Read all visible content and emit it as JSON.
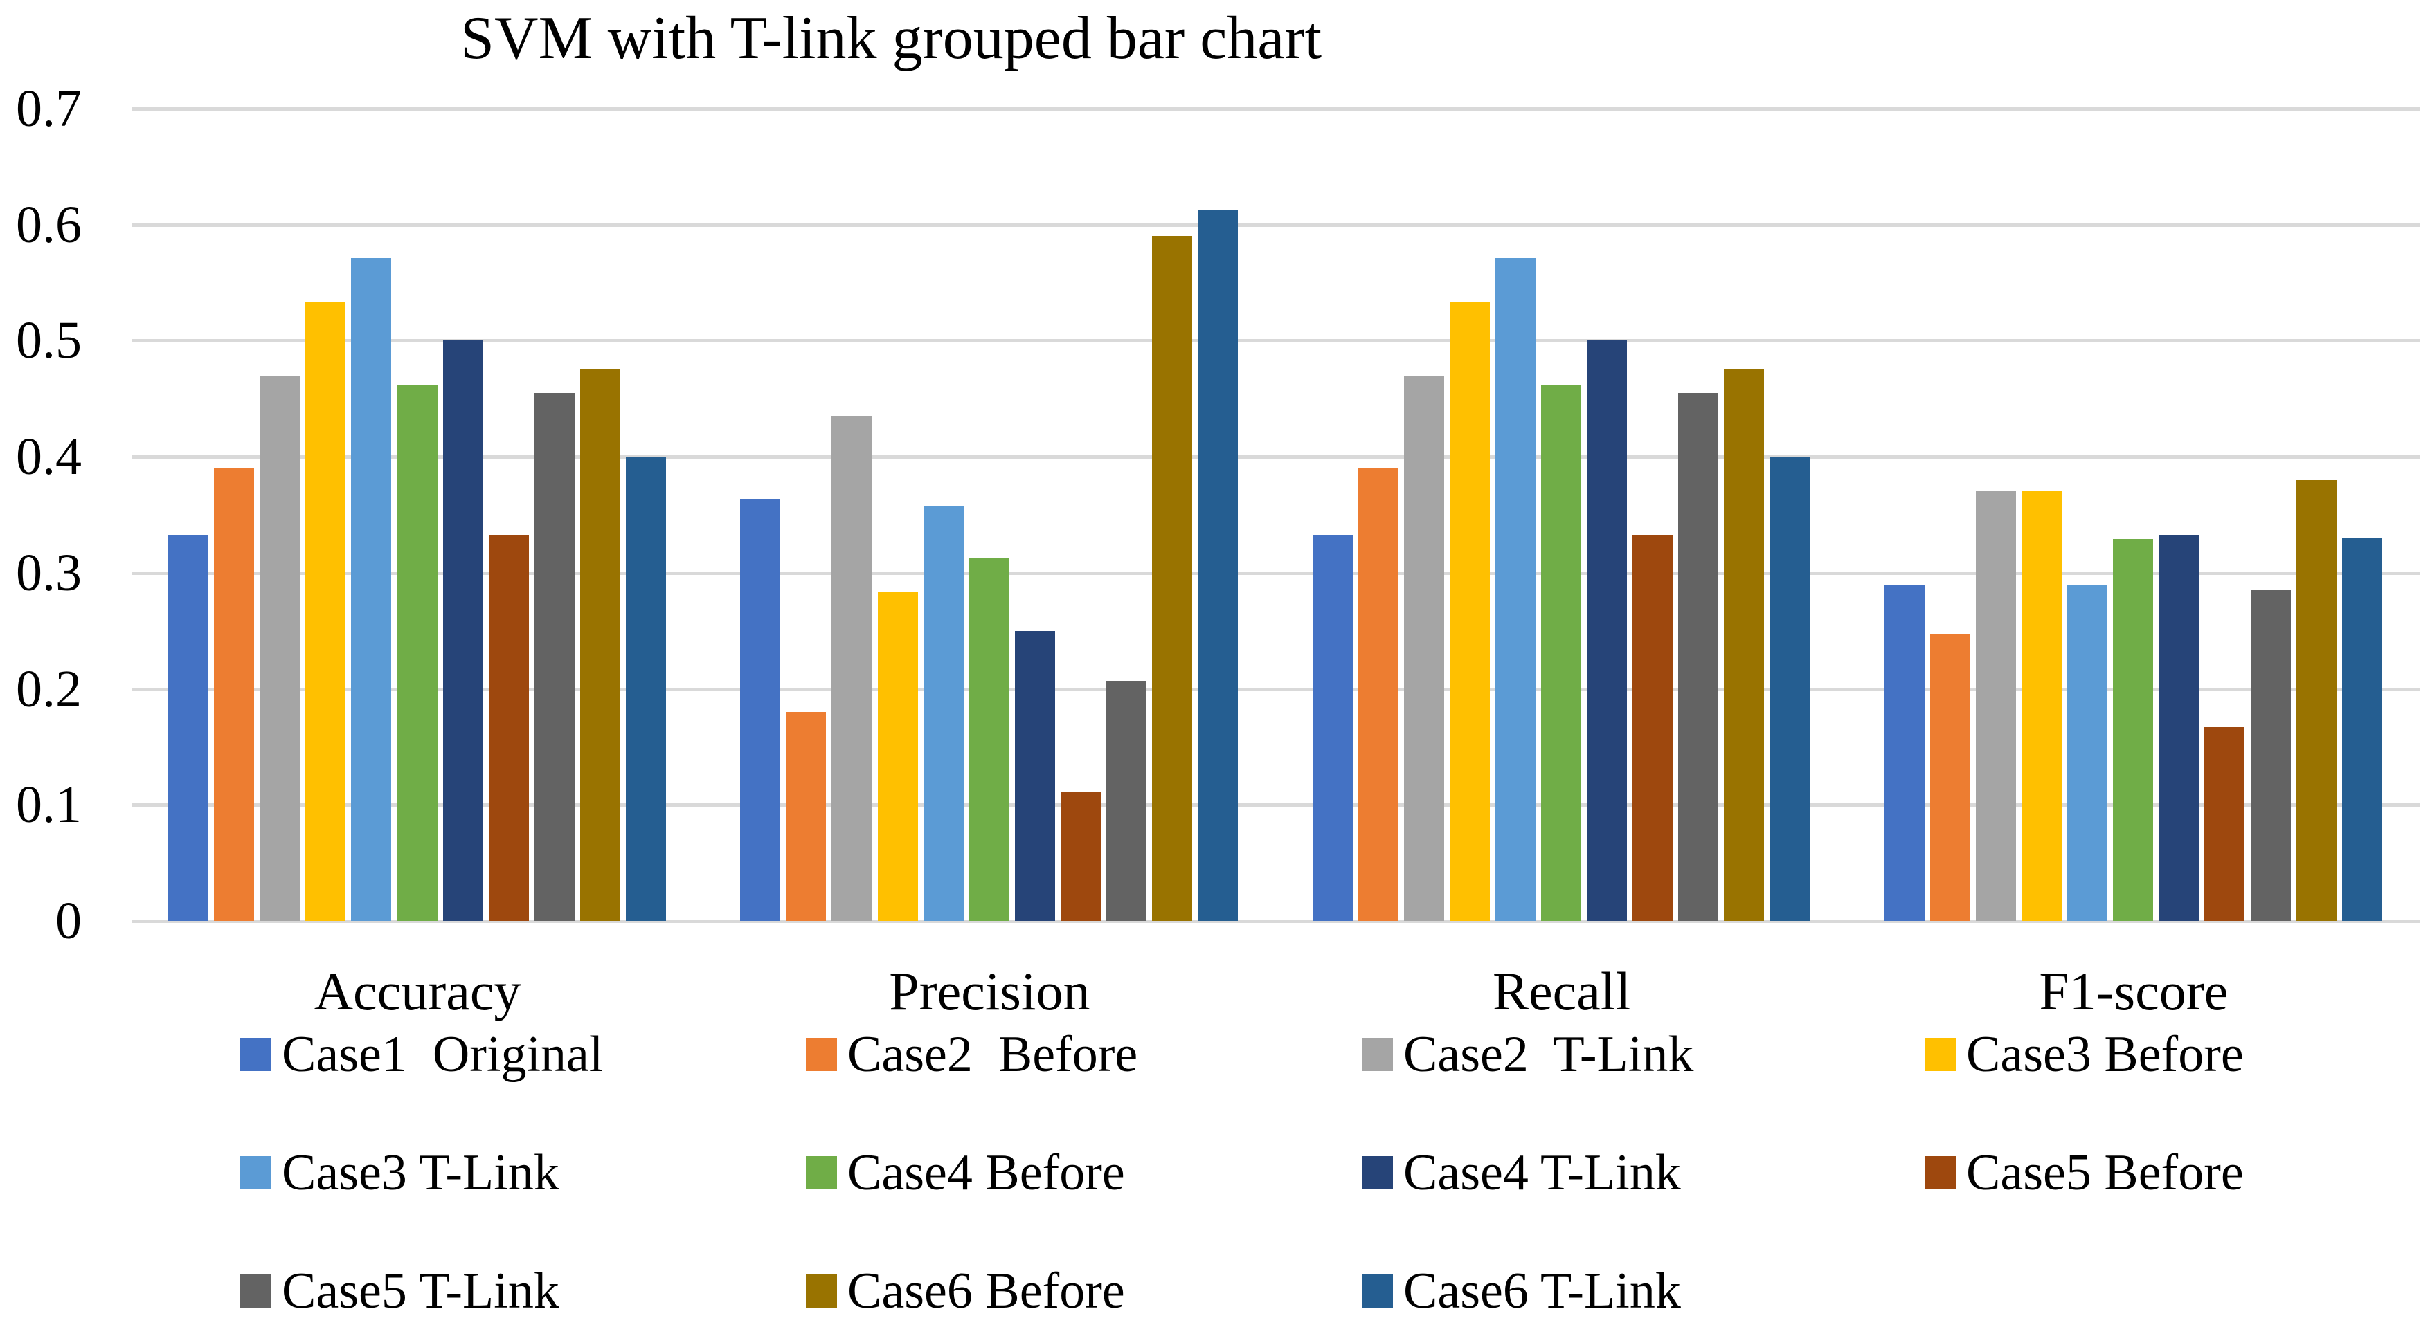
{
  "title": "SVM with T-link grouped bar chart",
  "chart_data": {
    "type": "bar",
    "title": "SVM with T-link grouped bar chart",
    "categories": [
      "Accuracy",
      "Precision",
      "Recall",
      "F1-score"
    ],
    "series": [
      {
        "name": "Case1  Original",
        "color": "#4472C4",
        "values": [
          0.333,
          0.364,
          0.333,
          0.289
        ]
      },
      {
        "name": "Case2  Before",
        "color": "#ED7D31",
        "values": [
          0.39,
          0.18,
          0.39,
          0.247
        ]
      },
      {
        "name": "Case2  T-Link",
        "color": "#A5A5A5",
        "values": [
          0.47,
          0.435,
          0.47,
          0.37
        ]
      },
      {
        "name": "Case3 Before",
        "color": "#FFC000",
        "values": [
          0.533,
          0.283,
          0.533,
          0.37
        ]
      },
      {
        "name": "Case3 T-Link",
        "color": "#5B9BD5",
        "values": [
          0.571,
          0.357,
          0.571,
          0.29
        ]
      },
      {
        "name": "Case4 Before",
        "color": "#70AD47",
        "values": [
          0.462,
          0.313,
          0.462,
          0.329
        ]
      },
      {
        "name": "Case4 T-Link",
        "color": "#264478",
        "values": [
          0.5,
          0.25,
          0.5,
          0.333
        ]
      },
      {
        "name": "Case5 Before",
        "color": "#9E480E",
        "values": [
          0.333,
          0.111,
          0.333,
          0.167
        ]
      },
      {
        "name": "Case5 T-Link",
        "color": "#636363",
        "values": [
          0.455,
          0.207,
          0.455,
          0.285
        ]
      },
      {
        "name": "Case6 Before",
        "color": "#997300",
        "values": [
          0.476,
          0.59,
          0.476,
          0.38
        ]
      },
      {
        "name": "Case6 T-Link",
        "color": "#255E91",
        "values": [
          0.4,
          0.613,
          0.4,
          0.33
        ]
      }
    ],
    "y_ticks": [
      "0.7",
      "0.6",
      "0.5",
      "0.4",
      "0.3",
      "0.2",
      "0.1",
      "0"
    ],
    "ylim": [
      0,
      0.7
    ],
    "xlabel": "",
    "ylabel": "",
    "grid": true,
    "gridline_color": "#D9D9D9",
    "legend_position": "bottom",
    "legend_rows": [
      [
        0,
        1,
        2,
        3
      ],
      [
        4,
        5,
        6,
        7
      ],
      [
        8,
        9,
        10
      ]
    ]
  }
}
